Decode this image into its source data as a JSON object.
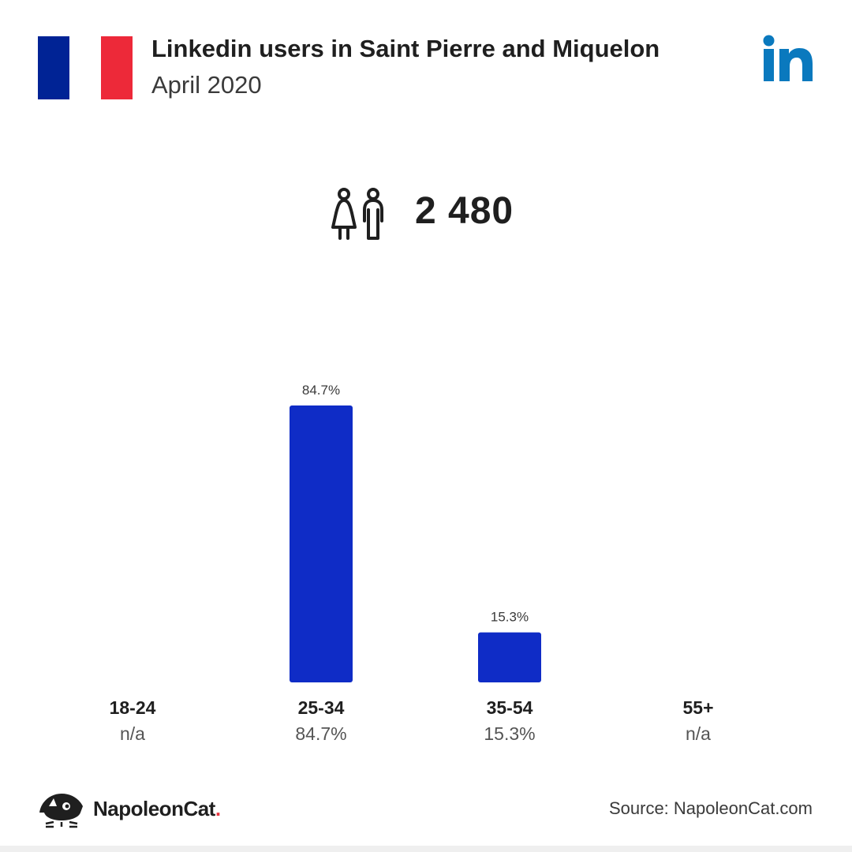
{
  "header": {
    "title": "Linkedin users in Saint Pierre and Miquelon",
    "subtitle": "April 2020",
    "flag_colors": [
      "#002395",
      "#ffffff",
      "#ED2939"
    ],
    "brand_icon": "linkedin-logo",
    "brand_color": "#0A79BE"
  },
  "summary": {
    "icon": "people-icon",
    "total_users": "2 480"
  },
  "chart_data": {
    "type": "bar",
    "categories": [
      "18-24",
      "25-34",
      "35-54",
      "55+"
    ],
    "values": [
      null,
      84.7,
      15.3,
      null
    ],
    "data_labels": [
      "",
      "84.7%",
      "15.3%",
      ""
    ],
    "category_values": [
      "n/a",
      "84.7%",
      "15.3%",
      "n/a"
    ],
    "unit": "%",
    "ylim": [
      0,
      84.7
    ],
    "grid": false,
    "bar_color": "#0F2CC6"
  },
  "footer": {
    "brand_name": "NapoleonCat",
    "brand_dot": ".",
    "brand_icon": "napoleoncat-logo",
    "source": "Source: NapoleonCat.com"
  }
}
